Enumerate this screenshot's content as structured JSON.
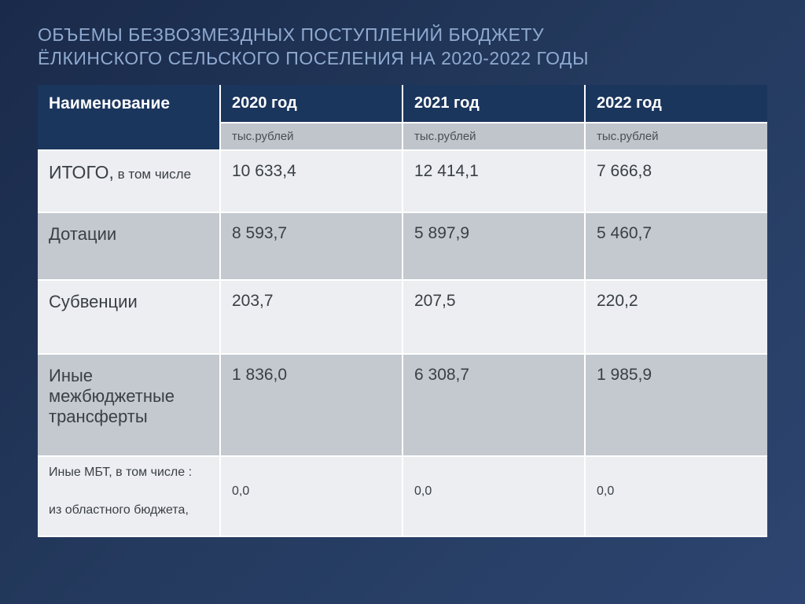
{
  "title_line1": "ОБЪЕМЫ БЕЗВОЗМЕЗДНЫХ ПОСТУПЛЕНИЙ БЮДЖЕТУ",
  "title_line2": "ЁЛКИНСКОГО СЕЛЬСКОГО ПОСЕЛЕНИЯ НА 2020-2022 ГОДЫ",
  "styling": {
    "page_bg_gradient": [
      "#1a2a4a",
      "#243a5e",
      "#2d4570"
    ],
    "title_color": "#8faad0",
    "title_fontsize": 23,
    "header_bg": "#1b365d",
    "header_color": "#ffffff",
    "header_fontsize": 20,
    "units_bg": "#bfc5cb",
    "units_color": "#4a4f55",
    "units_fontsize": 15,
    "row_alt_a_bg": "#eceef1",
    "row_alt_b_bg": "#c3c9cf",
    "cell_text_color": "#3a3f45",
    "cell_fontsize": 21,
    "border_color": "#ffffff",
    "border_width": 2,
    "col_widths_pct": [
      25,
      25,
      25,
      25
    ]
  },
  "table": {
    "type": "table",
    "header": {
      "name": "Наименование",
      "y2020": "2020 год",
      "y2021": "2021 год",
      "y2022": "2022 год"
    },
    "units": "тыс.рублей",
    "rows": {
      "total": {
        "label_main": "ИТОГО,",
        "label_sub": " в том числе",
        "y2020": "10 633,4",
        "y2021": "12 414,1",
        "y2022": "7 666,8"
      },
      "dotations": {
        "label": "Дотации",
        "y2020": "8 593,7",
        "y2021": "5 897,9",
        "y2022": "5 460,7"
      },
      "subventions": {
        "label": "Субвенции",
        "y2020": "203,7",
        "y2021": "207,5",
        "y2022": "220,2"
      },
      "other_transfers": {
        "label": "Иные межбюджетные трансферты",
        "y2020": "1 836,0",
        "y2021": "6 308,7",
        "y2022": "1 985,9"
      },
      "mbt": {
        "label_line1": "Иные МБТ, в том числе :",
        "label_line2": "из областного бюджета,",
        "y2020": "0,0",
        "y2021": "0,0",
        "y2022": "0,0"
      }
    }
  }
}
